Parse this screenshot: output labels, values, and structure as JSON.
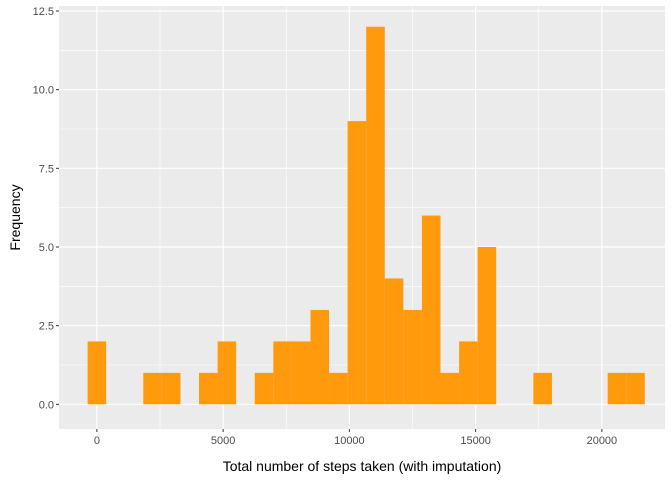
{
  "chart_data": {
    "type": "bar",
    "subtype": "histogram",
    "xlabel": "Total number of steps taken (with imputation)",
    "ylabel": "Frequency",
    "xlim": [
      -1500,
      22500
    ],
    "ylim": [
      -0.625,
      12.5
    ],
    "x_ticks": [
      0,
      5000,
      10000,
      15000,
      20000
    ],
    "y_ticks": [
      0.0,
      2.5,
      5.0,
      7.5,
      10.0,
      12.5
    ],
    "y_tick_labels": [
      "0.0",
      "2.5",
      "5.0",
      "7.5",
      "10.0",
      "12.5"
    ],
    "bin_width": 735.6,
    "bins": [
      {
        "x": 0,
        "count": 2
      },
      {
        "x": 735.6,
        "count": 0
      },
      {
        "x": 1471.2,
        "count": 0
      },
      {
        "x": 2206.8,
        "count": 1
      },
      {
        "x": 2942.4,
        "count": 1
      },
      {
        "x": 3678,
        "count": 0
      },
      {
        "x": 4413.6,
        "count": 1
      },
      {
        "x": 5149.2,
        "count": 2
      },
      {
        "x": 5884.8,
        "count": 0
      },
      {
        "x": 6620.4,
        "count": 1
      },
      {
        "x": 7356,
        "count": 2
      },
      {
        "x": 8091.6,
        "count": 2
      },
      {
        "x": 8827.2,
        "count": 3
      },
      {
        "x": 9562.8,
        "count": 1
      },
      {
        "x": 10298.4,
        "count": 9
      },
      {
        "x": 11034,
        "count": 12
      },
      {
        "x": 11769.6,
        "count": 4
      },
      {
        "x": 12505.2,
        "count": 3
      },
      {
        "x": 13240.8,
        "count": 6
      },
      {
        "x": 13976.4,
        "count": 1
      },
      {
        "x": 14712,
        "count": 2
      },
      {
        "x": 15447.6,
        "count": 5
      },
      {
        "x": 16183.2,
        "count": 0
      },
      {
        "x": 16918.8,
        "count": 0
      },
      {
        "x": 17654.4,
        "count": 1
      },
      {
        "x": 18390,
        "count": 0
      },
      {
        "x": 19125.6,
        "count": 0
      },
      {
        "x": 19861.2,
        "count": 0
      },
      {
        "x": 20596.8,
        "count": 1
      },
      {
        "x": 21332.4,
        "count": 1
      }
    ],
    "bar_color": "#FF9A0D",
    "panel_background": "#EBEBEB",
    "grid_color": "#FFFFFF",
    "grid": true,
    "legend": "none"
  }
}
